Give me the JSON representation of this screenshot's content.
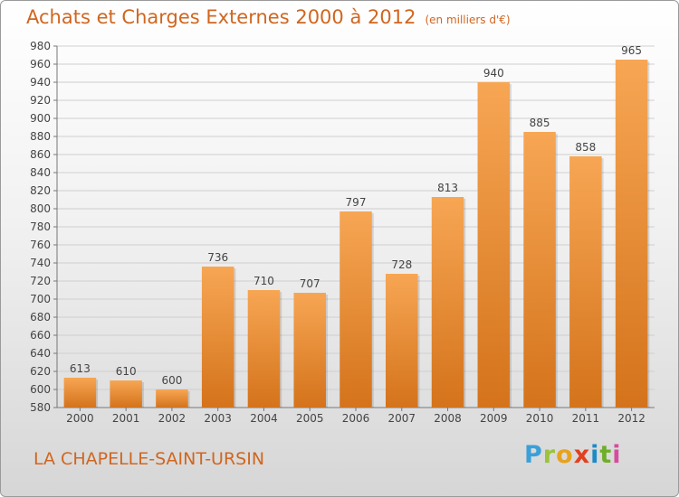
{
  "header": {
    "title": "Achats et Charges Externes 2000 à 2012",
    "unit": "(en milliers d'€)"
  },
  "footer": {
    "place": "LA CHAPELLE-SAINT-URSIN",
    "logo_letters": [
      "P",
      "r",
      "o",
      "x",
      "i",
      "t",
      "i"
    ],
    "logo_colors": [
      "#3aa0d8",
      "#9bc33b",
      "#e8a21c",
      "#e2401e",
      "#1e8ac6",
      "#6fae2a",
      "#d64b9e"
    ]
  },
  "chart_data": {
    "type": "bar",
    "categories": [
      "2000",
      "2001",
      "2002",
      "2003",
      "2004",
      "2005",
      "2006",
      "2007",
      "2008",
      "2009",
      "2010",
      "2011",
      "2012"
    ],
    "values": [
      613,
      610,
      600,
      736,
      710,
      707,
      797,
      728,
      813,
      940,
      885,
      858,
      965
    ],
    "data_labels": [
      "613",
      "610",
      "600",
      "736",
      "710",
      "707",
      "797",
      "728",
      "813",
      "940",
      "885",
      "858",
      "965"
    ],
    "title": "Achats et Charges Externes 2000 à 2012",
    "xlabel": "",
    "ylabel": "",
    "ylim": [
      580,
      980
    ],
    "yticks": [
      "580",
      "600",
      "620",
      "640",
      "660",
      "680",
      "700",
      "720",
      "740",
      "760",
      "780",
      "800",
      "820",
      "840",
      "860",
      "880",
      "900",
      "920",
      "940",
      "960",
      "980"
    ],
    "grid": true,
    "bar_color_top": "#f7a654",
    "bar_color_bottom": "#d4731b"
  }
}
